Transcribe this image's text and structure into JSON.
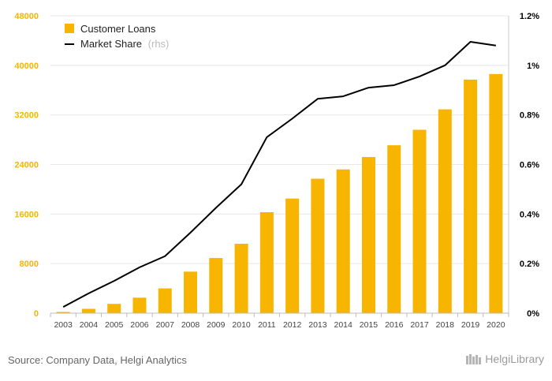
{
  "chart_data": {
    "type": "bar",
    "categories": [
      "2003",
      "2004",
      "2005",
      "2006",
      "2007",
      "2008",
      "2009",
      "2010",
      "2011",
      "2012",
      "2013",
      "2014",
      "2015",
      "2016",
      "2017",
      "2018",
      "2019",
      "2020"
    ],
    "series": [
      {
        "name": "Customer Loans",
        "type": "bar",
        "axis": "left",
        "color": "#f7b500",
        "values": [
          200,
          700,
          1500,
          2500,
          4000,
          6700,
          8900,
          11200,
          16300,
          18500,
          21700,
          23200,
          25200,
          27100,
          29600,
          32900,
          37700,
          38600
        ]
      },
      {
        "name": "Market Share",
        "name_suffix": "(rhs)",
        "type": "line",
        "axis": "right",
        "color": "#000000",
        "values": [
          0.025,
          0.08,
          0.13,
          0.185,
          0.23,
          0.325,
          0.425,
          0.52,
          0.71,
          0.785,
          0.865,
          0.875,
          0.91,
          0.92,
          0.955,
          1.0,
          1.095,
          1.08
        ]
      }
    ],
    "y_left": {
      "min": 0,
      "max": 48000,
      "ticks": [
        "0",
        "8000",
        "16000",
        "24000",
        "32000",
        "40000",
        "48000"
      ],
      "tick_values": [
        0,
        8000,
        16000,
        24000,
        32000,
        40000,
        48000
      ],
      "label_color": "#f7b500"
    },
    "y_right": {
      "min": 0,
      "max": 1.2,
      "ticks": [
        "0%",
        "0.2%",
        "0.4%",
        "0.6%",
        "0.8%",
        "1%",
        "1.2%"
      ],
      "tick_values": [
        0,
        0.2,
        0.4,
        0.6,
        0.8,
        1.0,
        1.2
      ],
      "label_color": "#000000"
    },
    "grid": true,
    "legend": "top-left"
  },
  "source_text": "Source: Company Data, Helgi Analytics",
  "logo_text": "HelgiLibrary"
}
